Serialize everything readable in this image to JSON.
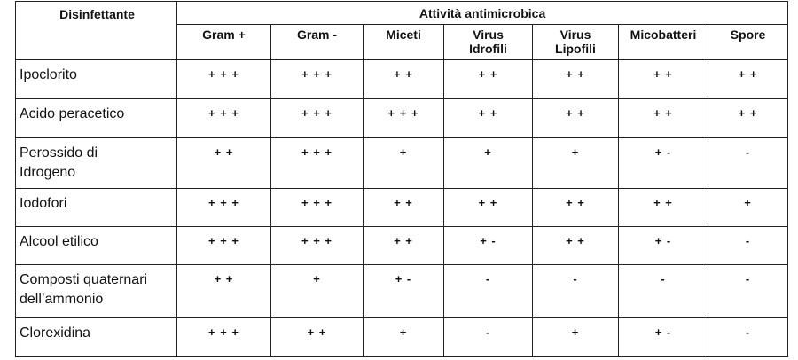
{
  "table": {
    "header": {
      "row_label": "Disinfettante",
      "group": "Attività antimicrobica",
      "columns": [
        "Gram +",
        "Gram -",
        "Miceti",
        "Virus\nIdrofili",
        "Virus\nLipofili",
        "Micobatteri",
        "Spore"
      ]
    },
    "rows": [
      {
        "label": "Ipoclorito",
        "values": [
          "+ + +",
          "+ + +",
          "+ +",
          "+ +",
          "+ +",
          "+ +",
          "+ +"
        ]
      },
      {
        "label": "Acido peracetico",
        "values": [
          "+ + +",
          "+ + +",
          "+ + +",
          "+ +",
          "+ +",
          "+ +",
          "+ +"
        ]
      },
      {
        "label": "Perossido di\nIdrogeno",
        "values": [
          "+ +",
          "+ + +",
          "+",
          "+",
          "+",
          "+ -",
          "-"
        ]
      },
      {
        "label": "Iodofori",
        "values": [
          "+ + +",
          "+ + +",
          "+ +",
          "+ +",
          "+ +",
          "+ +",
          "+"
        ]
      },
      {
        "label": "Alcool etilico",
        "values": [
          "+ + +",
          "+ + +",
          "+ +",
          "+ -",
          "+ +",
          "+ -",
          "-"
        ]
      },
      {
        "label": "Composti quaternari\ndell’ammonio",
        "values": [
          "+ +",
          "+",
          "+ -",
          "-",
          "-",
          "-",
          "-"
        ]
      },
      {
        "label": "Clorexidina",
        "values": [
          "+ + +",
          "+ +",
          "+",
          "-",
          "+",
          "+ -",
          "-"
        ]
      }
    ]
  }
}
